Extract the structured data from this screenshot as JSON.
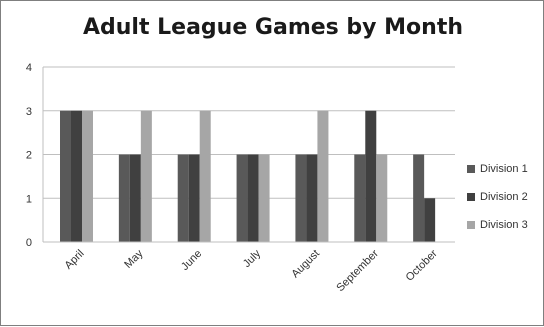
{
  "colors": {
    "division_1": "#595959",
    "division_2": "#404040",
    "division_3": "#a6a6a6",
    "gridline": "#bfbfbf",
    "axis_text": "#333333"
  },
  "chart_data": {
    "type": "bar",
    "title": "Adult League Games by Month",
    "xlabel": "",
    "ylabel": "",
    "ylim": [
      0,
      4
    ],
    "yticks": [
      0,
      1,
      2,
      3,
      4
    ],
    "grid": true,
    "legend_position": "right",
    "categories": [
      "April",
      "May",
      "June",
      "July",
      "August",
      "September",
      "October"
    ],
    "series": [
      {
        "name": "Division 1",
        "values": [
          3,
          2,
          2,
          2,
          2,
          2,
          2
        ]
      },
      {
        "name": "Division 2",
        "values": [
          3,
          2,
          2,
          2,
          2,
          3,
          1
        ]
      },
      {
        "name": "Division 3",
        "values": [
          3,
          3,
          3,
          2,
          3,
          2,
          null
        ]
      }
    ]
  }
}
